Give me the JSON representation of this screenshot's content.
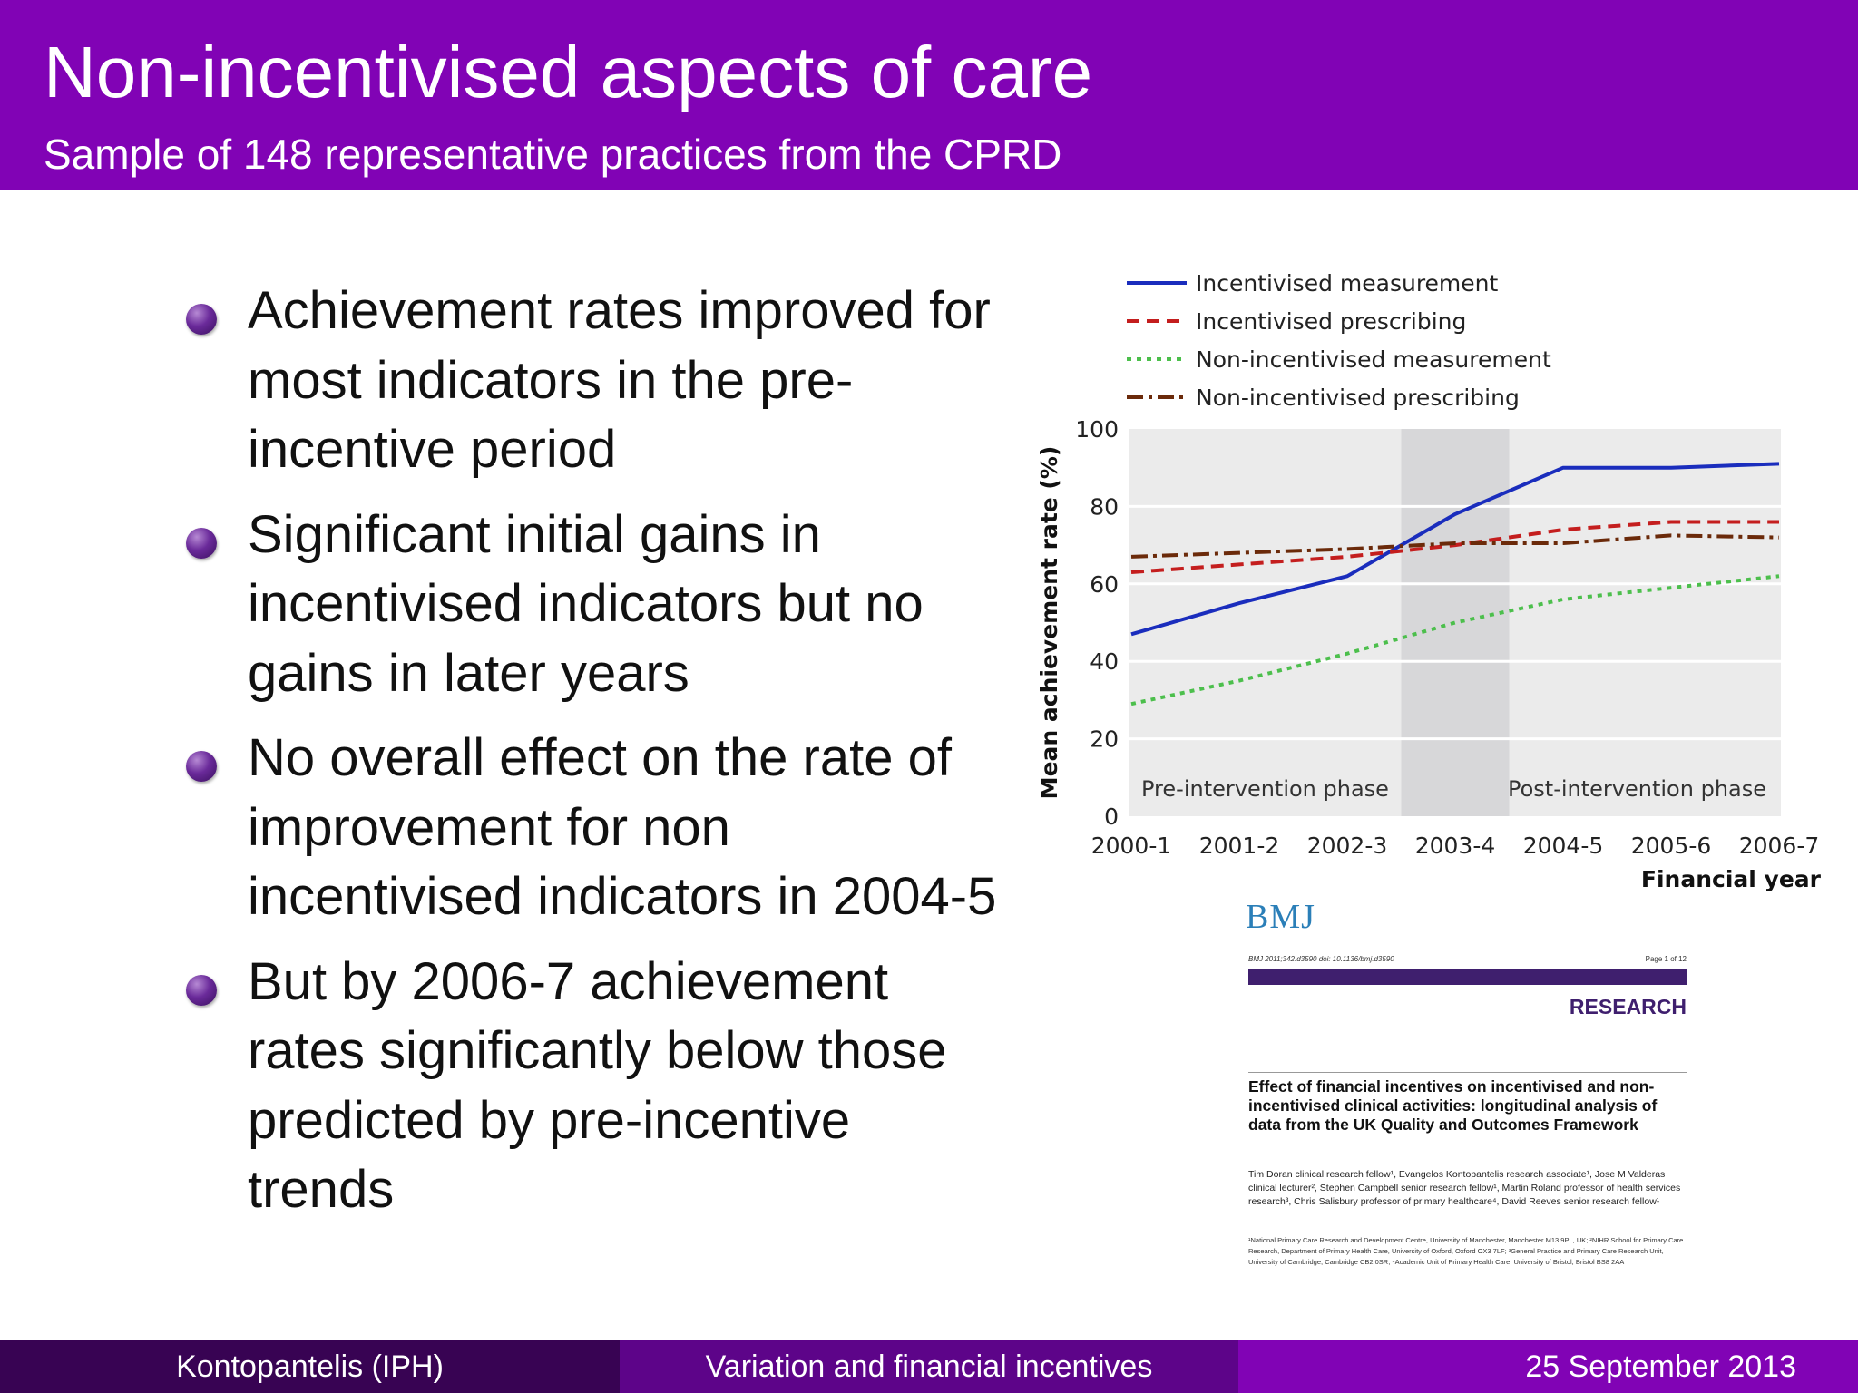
{
  "header": {
    "title": "Non-incentivised aspects of care",
    "subtitle": "Sample of 148 representative practices from the CPRD"
  },
  "bullets": [
    {
      "text": "Achievement rates improved for most indicators in the pre-incentive period"
    },
    {
      "text": "Significant initial gains in incentivised indicators but no gains in later years"
    },
    {
      "text": "No overall effect on the rate of improvement for non incentivised indicators in 2004-5"
    },
    {
      "text": "But by 2006-7 achievement rates significantly below those predicted by pre-incentive trends"
    }
  ],
  "chart_data": {
    "type": "line",
    "title": "",
    "xlabel": "Financial year",
    "ylabel": "Mean achievement rate (%)",
    "ylim": [
      0,
      100
    ],
    "yticks": [
      0,
      20,
      40,
      60,
      80,
      100
    ],
    "categories": [
      "2000-1",
      "2001-2",
      "2002-3",
      "2003-4",
      "2004-5",
      "2005-6",
      "2006-7"
    ],
    "grid": true,
    "legend_position": "top",
    "shaded_region": {
      "from": "2002-3",
      "to": "2003-4"
    },
    "phase_labels": {
      "pre": "Pre-intervention phase",
      "post": "Post-intervention phase"
    },
    "series": [
      {
        "name": "Incentivised measurement",
        "color": "#1a2dbd",
        "dash": "solid",
        "values": [
          47,
          55,
          62,
          78,
          90,
          90,
          91
        ]
      },
      {
        "name": "Incentivised prescribing",
        "color": "#c41e1e",
        "dash": "dashed",
        "values": [
          63,
          65,
          67,
          70,
          74,
          76,
          76
        ]
      },
      {
        "name": "Non-incentivised measurement",
        "color": "#4cbf4c",
        "dash": "dotted",
        "values": [
          29,
          35,
          42,
          50,
          56,
          59,
          62
        ]
      },
      {
        "name": "Non-incentivised prescribing",
        "color": "#6b2a0a",
        "dash": "dashdot",
        "values": [
          67,
          68,
          69,
          70.5,
          70.5,
          72.5,
          72
        ]
      }
    ]
  },
  "paper": {
    "logo": "BMJ",
    "citation": "BMJ 2011;342:d3590 doi: 10.1136/bmj.d3590",
    "page": "Page 1 of 12",
    "section": "RESEARCH",
    "title": "Effect of financial incentives on incentivised and non-incentivised clinical activities: longitudinal analysis of data from the UK Quality and Outcomes Framework",
    "authors": "Tim Doran clinical research fellow¹, Evangelos Kontopantelis research associate¹, Jose M Valderas clinical lecturer², Stephen Campbell senior research fellow¹, Martin Roland professor of health services research³, Chris Salisbury professor of primary healthcare⁴, David Reeves senior research fellow¹",
    "affiliations": "¹National Primary Care Research and Development Centre, University of Manchester, Manchester M13 9PL, UK; ²NIHR School for Primary Care Research, Department of Primary Health Care, University of Oxford, Oxford OX3 7LF; ³General Practice and Primary Care Research Unit, University of Cambridge, Cambridge CB2 0SR; ⁴Academic Unit of Primary Health Care, University of Bristol, Bristol BS8 2AA"
  },
  "footer": {
    "author": "Kontopantelis  (IPH)",
    "talk": "Variation and financial incentives",
    "date": "25 September 2013"
  }
}
